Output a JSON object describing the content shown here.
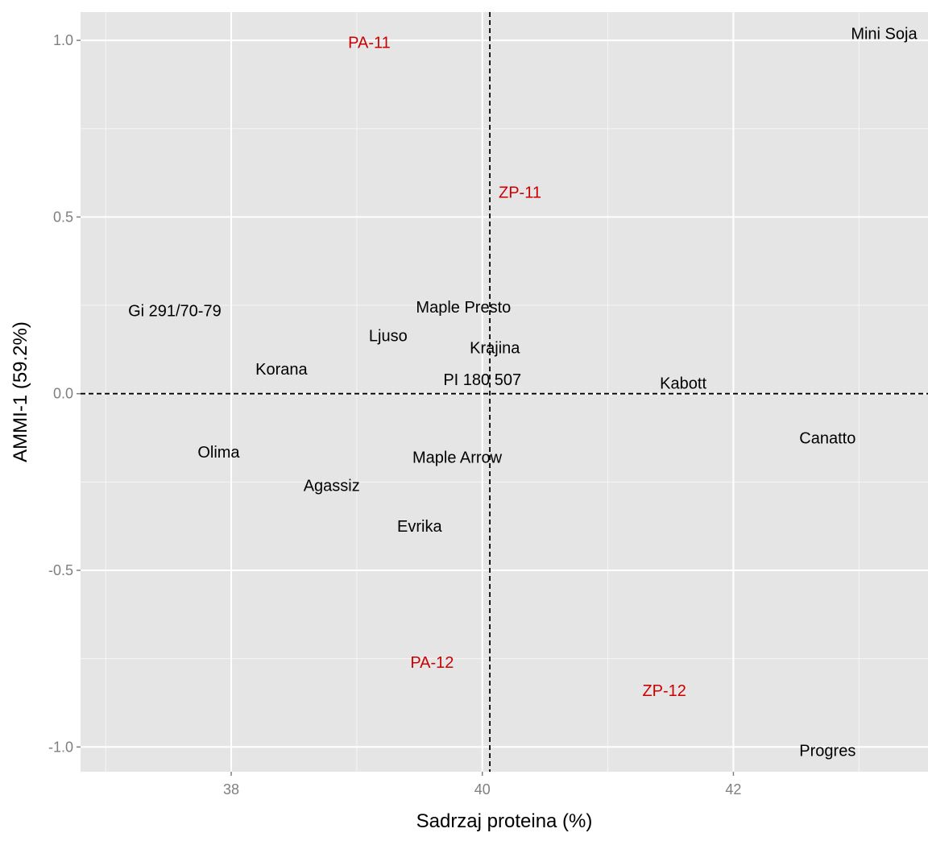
{
  "chart_data": {
    "type": "scatter",
    "title": "",
    "xlabel": "Sadrzaj proteina (%)",
    "ylabel": "AMMI-1 (59.2%)",
    "xlim": [
      36.8,
      43.55
    ],
    "ylim": [
      -1.07,
      1.08
    ],
    "x_ticks": [
      {
        "value": 38,
        "label": "38"
      },
      {
        "value": 40,
        "label": "40"
      },
      {
        "value": 42,
        "label": "42"
      }
    ],
    "y_ticks": [
      {
        "value": -1.0,
        "label": "-1.0"
      },
      {
        "value": -0.5,
        "label": "-0.5"
      },
      {
        "value": 0.0,
        "label": "0.0"
      },
      {
        "value": 0.5,
        "label": "0.5"
      },
      {
        "value": 1.0,
        "label": "1.0"
      }
    ],
    "grid": true,
    "reference_lines": {
      "x": 40.06,
      "y": 0.0
    },
    "colors": {
      "panel": "#e5e5e5",
      "grid": "#ffffff",
      "genotype": "#000000",
      "environment": "#cc0000",
      "tick_label": "#7f7f7f"
    },
    "series": [
      {
        "name": "",
        "color": "#000000",
        "points": [
          {
            "label": "Mini Soja",
            "x": 43.2,
            "y": 1.02
          },
          {
            "label": "Gi 291/70-79",
            "x": 37.55,
            "y": 0.235
          },
          {
            "label": "Maple Presto",
            "x": 39.85,
            "y": 0.245
          },
          {
            "label": "Ljuso",
            "x": 39.25,
            "y": 0.165
          },
          {
            "label": "Krajina",
            "x": 40.1,
            "y": 0.13
          },
          {
            "label": "Korana",
            "x": 38.4,
            "y": 0.07
          },
          {
            "label": "PI 180 507",
            "x": 40.0,
            "y": 0.04
          },
          {
            "label": "Kabott",
            "x": 41.6,
            "y": 0.03
          },
          {
            "label": "Canatto",
            "x": 42.75,
            "y": -0.125
          },
          {
            "label": "Olima",
            "x": 37.9,
            "y": -0.165
          },
          {
            "label": "Maple Arrow",
            "x": 39.8,
            "y": -0.18
          },
          {
            "label": "Agassiz",
            "x": 38.8,
            "y": -0.26
          },
          {
            "label": "Evrika",
            "x": 39.5,
            "y": -0.375
          },
          {
            "label": "Progres",
            "x": 42.75,
            "y": -1.01
          }
        ]
      },
      {
        "name": "",
        "color": "#cc0000",
        "points": [
          {
            "label": "PA-11",
            "x": 39.1,
            "y": 0.995
          },
          {
            "label": "ZP-11",
            "x": 40.3,
            "y": 0.57
          },
          {
            "label": "PA-12",
            "x": 39.6,
            "y": -0.76
          },
          {
            "label": "ZP-12",
            "x": 41.45,
            "y": -0.84
          }
        ]
      }
    ]
  }
}
